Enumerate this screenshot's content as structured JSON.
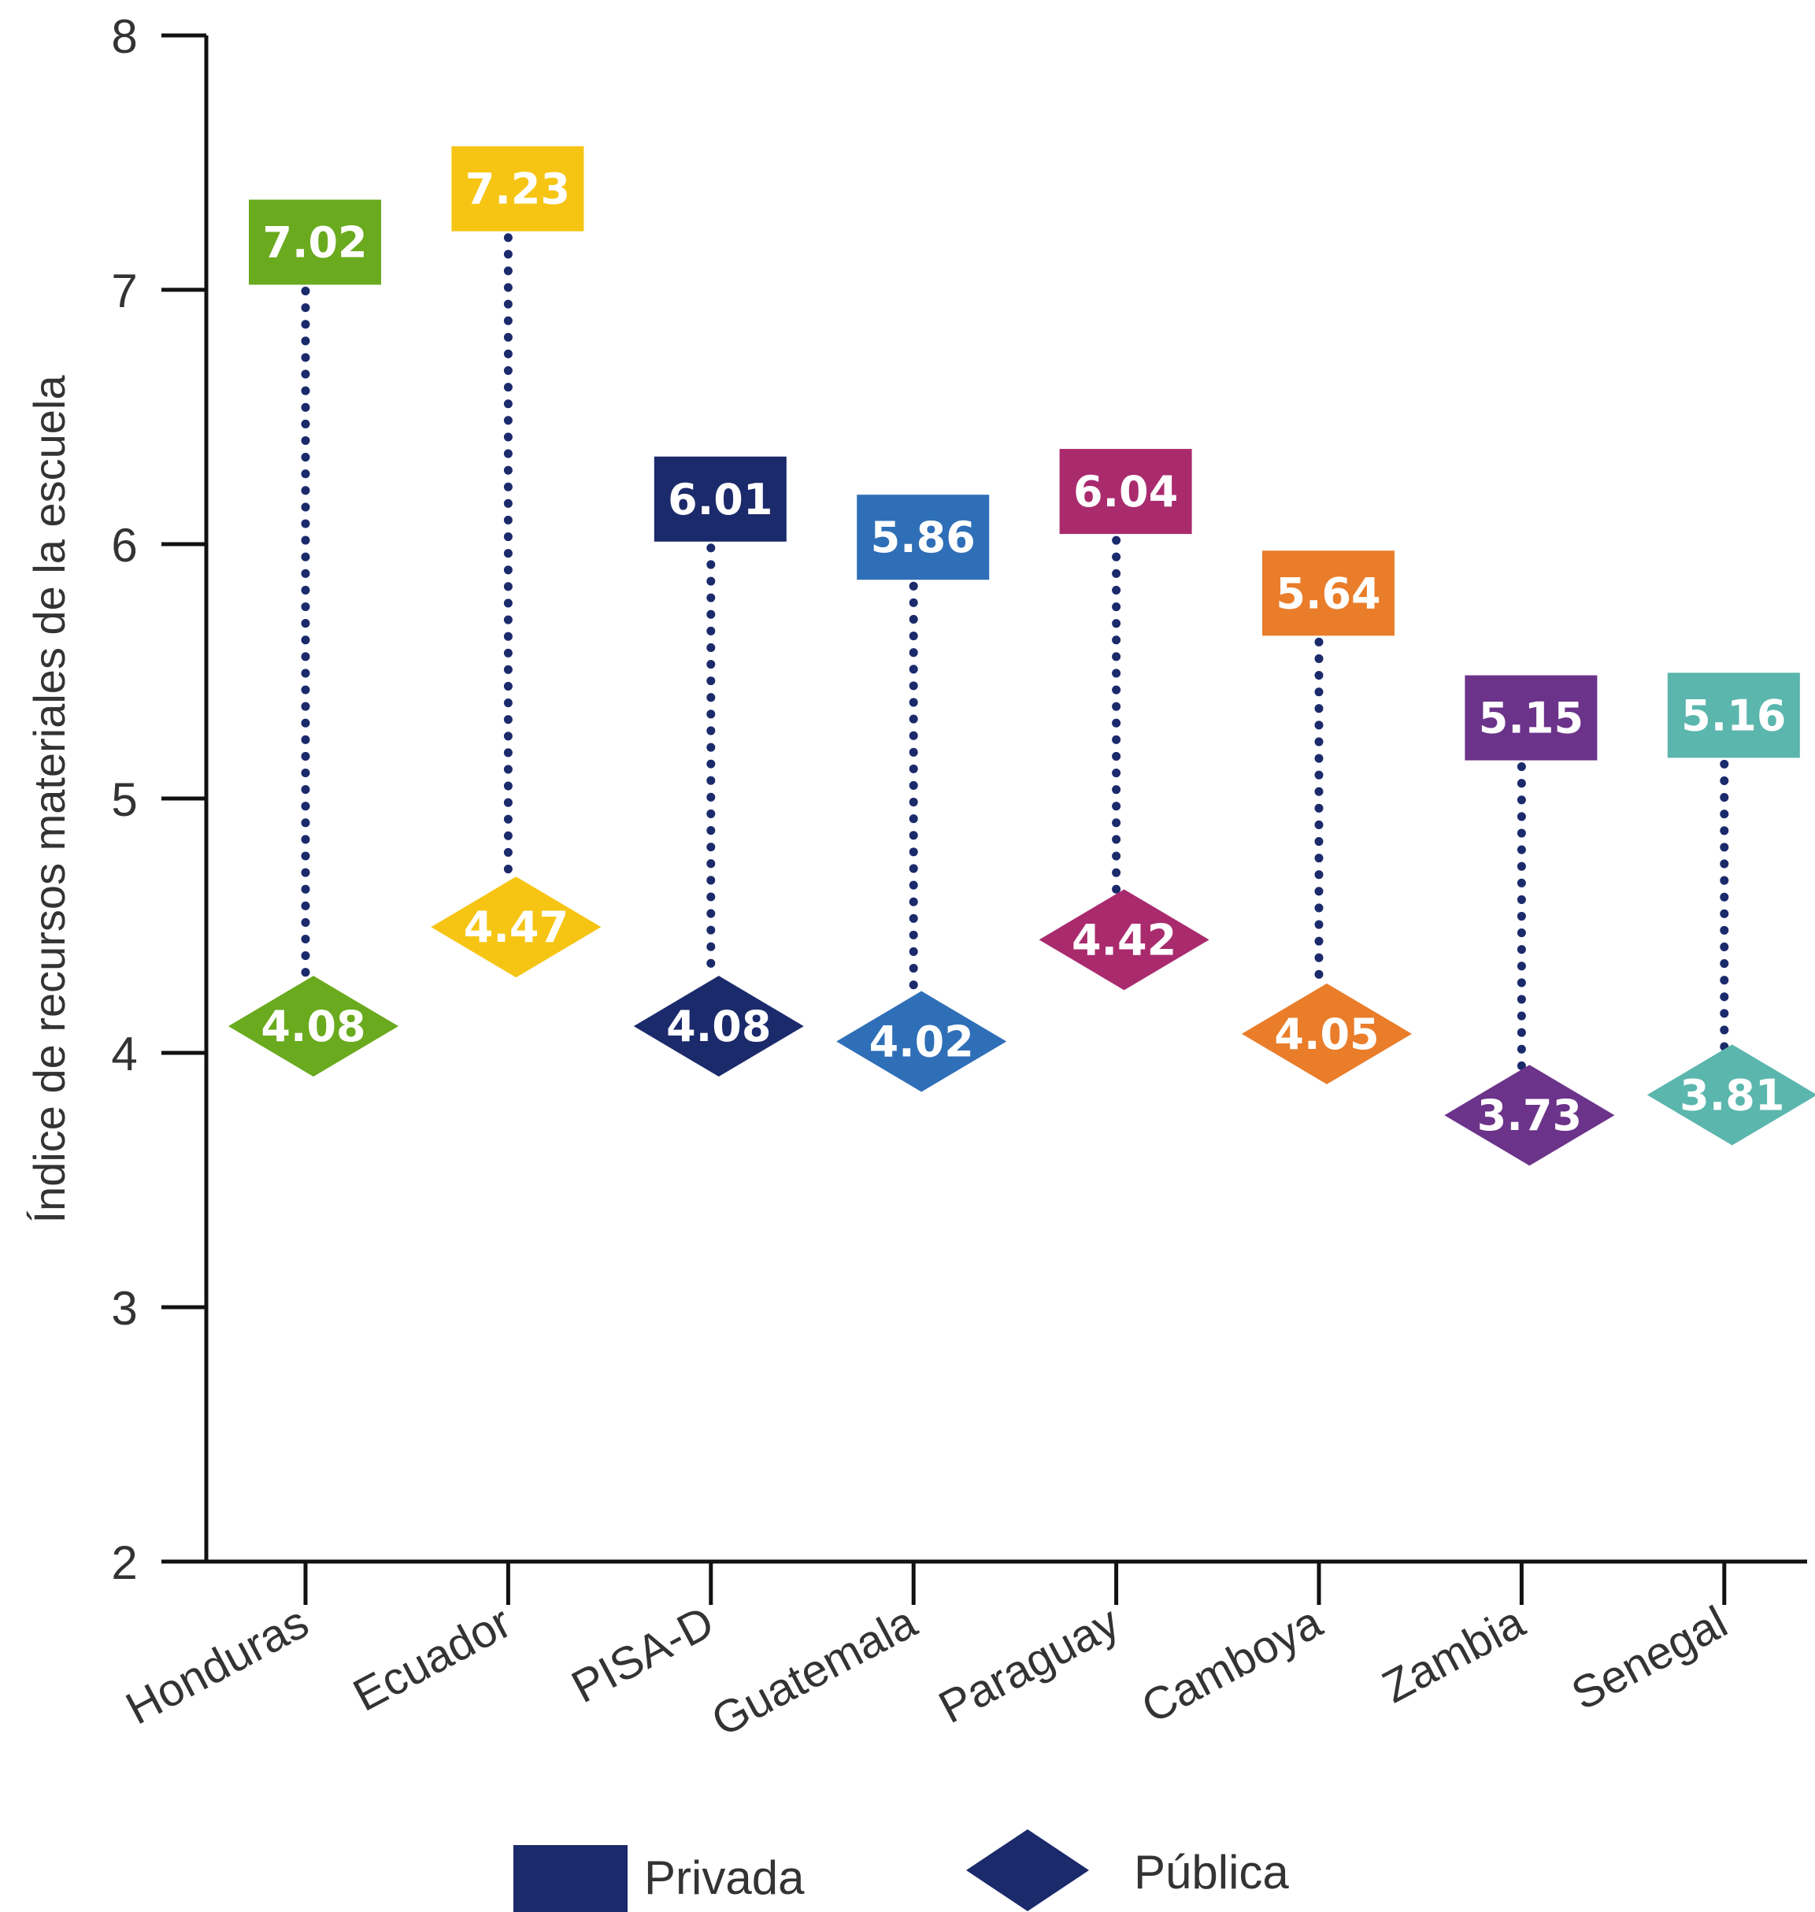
{
  "chart_data": {
    "type": "dot",
    "ylabel": "Índice de recursos materiales de la escuela",
    "ylim": [
      2,
      8
    ],
    "yticks": [
      "2",
      "3",
      "4",
      "5",
      "6",
      "7",
      "8"
    ],
    "categories": [
      "Honduras",
      "Ecuador",
      "PISA-D",
      "Guatemala",
      "Paraguay",
      "Camboya",
      "Zambia",
      "Senegal"
    ],
    "colors": [
      "#6aaa1e",
      "#f6c514",
      "#1b2a6b",
      "#2f6fb8",
      "#a92b6e",
      "#e97d2a",
      "#6b3389",
      "#5bb6ad"
    ],
    "series": [
      {
        "name": "Privada",
        "marker": "square",
        "values": [
          7.02,
          7.23,
          6.01,
          5.86,
          6.04,
          5.64,
          5.15,
          5.16
        ]
      },
      {
        "name": "Pública",
        "marker": "diamond",
        "values": [
          4.08,
          4.47,
          4.08,
          4.02,
          4.42,
          4.05,
          3.73,
          3.81
        ]
      }
    ],
    "value_labels": {
      "privada": [
        "7.02",
        "7.23",
        "6.01",
        "5.86",
        "6.04",
        "5.64",
        "5.15",
        "5.16"
      ],
      "publica": [
        "4.08",
        "4.47",
        "4.08",
        "4.02",
        "4.42",
        "4.05",
        "3.73",
        "3.81"
      ]
    },
    "connector_color": "#1b2a6b",
    "legend": {
      "items": [
        {
          "label": "Privada",
          "marker": "square",
          "color": "#1b2a6b"
        },
        {
          "label": "Pública",
          "marker": "diamond",
          "color": "#1b2a6b"
        }
      ],
      "position": "bottom"
    },
    "grid": false
  }
}
